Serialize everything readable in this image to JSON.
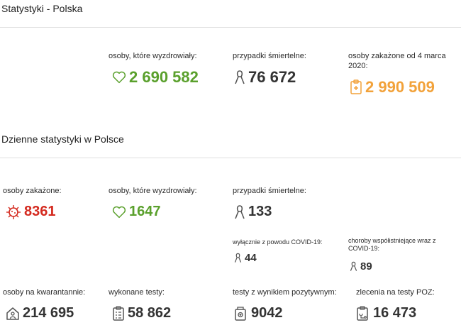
{
  "poland": {
    "title": "Statystyki - Polska",
    "recovered_label": "osoby, które wyzdrowiały:",
    "recovered_value": "2 690 582",
    "deaths_label": "przypadki śmiertelne:",
    "deaths_value": "76 672",
    "infected_label": "osoby zakażone od 4 marca 2020:",
    "infected_value": "2 990 509"
  },
  "daily": {
    "title": "Dzienne statystyki w Polsce",
    "infected_label": "osoby zakażone:",
    "infected_value": "8361",
    "recovered_label": "osoby, które wyzdrowiały:",
    "recovered_value": "1647",
    "deaths_label": "przypadki śmiertelne:",
    "deaths_value": "133",
    "covid_only_label": "wyłącznie z powodu COVID-19:",
    "covid_only_value": "44",
    "comorbid_label": "choroby współistniejące wraz z COVID-19:",
    "comorbid_value": "89",
    "quarantine_label": "osoby na kwarantannie:",
    "quarantine_value": "214 695",
    "tests_label": "wykonane testy:",
    "tests_value": "58 862",
    "positive_label": "testy z wynikiem pozytywnym:",
    "positive_value": "9042",
    "poz_label": "zlecenia na testy POZ:",
    "poz_value": "16 473"
  },
  "icons": {
    "recovered": "heart-icon",
    "deaths": "ribbon-icon",
    "infected_total": "clipboard-plus-icon",
    "infected_daily": "virus-icon",
    "quarantine": "house-person-icon",
    "tests": "clipboard-list-icon",
    "positive": "test-tube-icon",
    "poz": "clipboard-doctor-icon"
  },
  "colors": {
    "green": "#5aa02c",
    "dark": "#333333",
    "orange": "#f2a23a",
    "red": "#d42a1f"
  }
}
